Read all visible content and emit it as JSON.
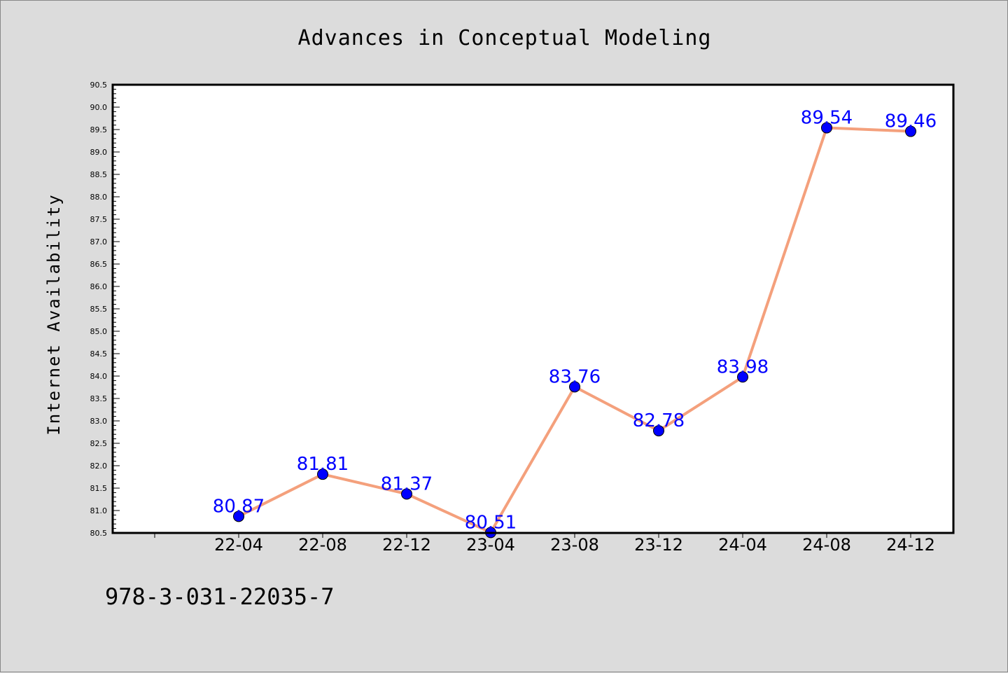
{
  "chart_data": {
    "type": "line",
    "title": "Advances in Conceptual Modeling",
    "xlabel": "",
    "ylabel": "Internet Availability",
    "categories": [
      "22-04",
      "22-08",
      "22-12",
      "23-04",
      "23-08",
      "23-12",
      "24-04",
      "24-08",
      "24-12"
    ],
    "series": [
      {
        "values": [
          80.87,
          81.81,
          81.37,
          80.51,
          83.76,
          82.78,
          83.98,
          89.54,
          89.46
        ]
      }
    ],
    "value_labels": [
      "80.87",
      "81.81",
      "81.37",
      "80.51",
      "83.76",
      "82.78",
      "83.98",
      "89.54",
      "89.46"
    ],
    "ylim": [
      80.5,
      90.5
    ],
    "yticks": [
      "80.5",
      "81.0",
      "81.5",
      "82.0",
      "82.5",
      "83.0",
      "83.5",
      "84.0",
      "84.5",
      "85.0",
      "85.5",
      "86.0",
      "86.5",
      "87.0",
      "87.5",
      "88.0",
      "88.5",
      "89.0",
      "89.5",
      "90.0",
      "90.5"
    ],
    "grid": false,
    "legend": "none",
    "colors": {
      "line": "#f4a07c",
      "marker": "#0000ff",
      "label": "#0000ff",
      "plot_bg": "#ffffff",
      "page_bg": "#dcdcdc"
    }
  },
  "footer": {
    "code": "978-3-031-22035-7"
  }
}
